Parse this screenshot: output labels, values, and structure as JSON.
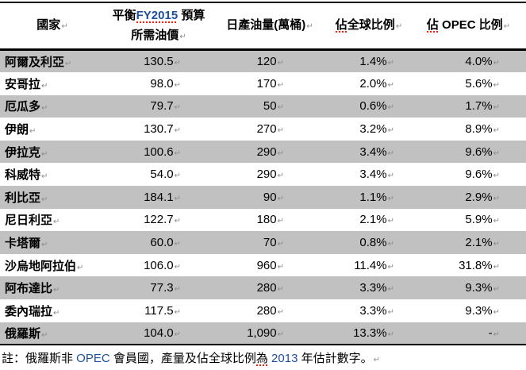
{
  "colors": {
    "row_shade": "#c1c1c1",
    "latin_blue": "#1f4e9e",
    "squiggle_red": "#ff1a00",
    "return_mark_gray": "#8c8c8c",
    "border_black": "#000000"
  },
  "return_mark": "↵",
  "table": {
    "columns": [
      {
        "key": "country",
        "name": "column-header-country",
        "header_line1": [
          {
            "t": "國家"
          }
        ]
      },
      {
        "key": "price",
        "name": "column-header-budget-price",
        "header_line1": [
          {
            "t": "平衡"
          },
          {
            "t": "FY2015",
            "blue": true,
            "squiggle": true
          },
          {
            "t": " 預算"
          }
        ],
        "header_line2": [
          {
            "t": "所需油價"
          }
        ]
      },
      {
        "key": "output",
        "name": "column-header-daily-output",
        "header_line1": [
          {
            "t": "日產油量(萬桶)"
          }
        ]
      },
      {
        "key": "global_share",
        "name": "column-header-global-share",
        "header_line1": [
          {
            "t": "佔",
            "squiggle": true
          },
          {
            "t": "全球比例"
          }
        ]
      },
      {
        "key": "opec_share",
        "name": "column-header-opec-share",
        "header_line1": [
          {
            "t": "佔",
            "squiggle": true
          },
          {
            "t": " OPEC 比例"
          }
        ]
      }
    ],
    "rows": [
      {
        "country": "阿爾及利亞",
        "price": "130.5",
        "output": "120",
        "global_share": "1.4%",
        "opec_share": "4.0%"
      },
      {
        "country": "安哥拉",
        "price": "98.0",
        "output": "170",
        "global_share": "2.0%",
        "opec_share": "5.6%"
      },
      {
        "country": "厄瓜多",
        "price": "79.7",
        "output": "50",
        "global_share": "0.6%",
        "opec_share": "1.7%"
      },
      {
        "country": "伊朗",
        "price": "130.7",
        "output": "270",
        "global_share": "3.2%",
        "opec_share": "8.9%"
      },
      {
        "country": "伊拉克",
        "price": "100.6",
        "output": "290",
        "global_share": "3.4%",
        "opec_share": "9.6%"
      },
      {
        "country": "科威特",
        "price": "54.0",
        "output": "290",
        "global_share": "3.4%",
        "opec_share": "9.6%"
      },
      {
        "country": "利比亞",
        "price": "184.1",
        "output": "90",
        "global_share": "1.1%",
        "opec_share": "2.9%"
      },
      {
        "country": "尼日利亞",
        "price": "122.7",
        "output": "180",
        "global_share": "2.1%",
        "opec_share": "5.9%"
      },
      {
        "country": "卡塔爾",
        "price": "60.0",
        "output": "70",
        "global_share": "0.8%",
        "opec_share": "2.1%"
      },
      {
        "country": "沙烏地阿拉伯",
        "price": "106.0",
        "output": "960",
        "global_share": "11.4%",
        "opec_share": "31.8%"
      },
      {
        "country": "阿布達比",
        "price": "77.3",
        "output": "280",
        "global_share": "3.3%",
        "opec_share": "9.3%"
      },
      {
        "country": "委內瑞拉",
        "price": "117.5",
        "output": "280",
        "global_share": "3.3%",
        "opec_share": "9.3%"
      },
      {
        "country": "俄羅斯",
        "price": "104.0",
        "output": "1,090",
        "global_share": "13.3%",
        "opec_share": "-"
      }
    ]
  },
  "footnote": {
    "segments": [
      {
        "t": "註：俄羅斯非 "
      },
      {
        "t": "OPEC",
        "blue": true
      },
      {
        "t": " 會員國，產量及佔全球比例"
      },
      {
        "t": "為",
        "squiggle": true
      },
      {
        "t": " "
      },
      {
        "t": "2013",
        "blue": true
      },
      {
        "t": " 年估計數字。"
      }
    ]
  }
}
